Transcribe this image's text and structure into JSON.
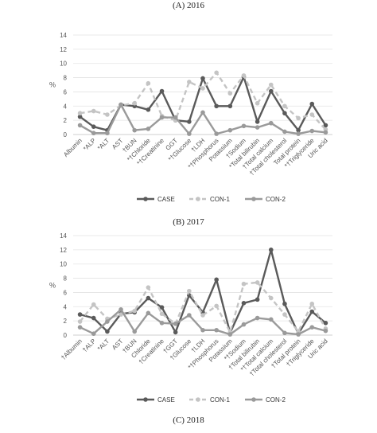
{
  "chart_data": [
    {
      "type": "line",
      "title": "(A) 2016",
      "ylabel": "%",
      "ylim": [
        0,
        14
      ],
      "yticks": [
        0,
        2,
        4,
        6,
        8,
        10,
        12,
        14
      ],
      "grid": true,
      "legend": "bottom",
      "categories": [
        "Albumin",
        "*ALP",
        "*ALT",
        "AST",
        "†BUN",
        "*†Chloride",
        "*†Creatinine",
        "GGT",
        "*†Glucose",
        "†LDH",
        "*†Phosphorus",
        "Potassium",
        "†Sodium",
        "*Total bilirubin",
        "†Total calcium",
        "†Total cholesterol",
        "Total protein",
        "*†Triglyceride",
        "Uric acid"
      ],
      "series": [
        {
          "name": "CASE",
          "color": "#5a5a5a",
          "dash": "solid",
          "values": [
            2.5,
            1.1,
            0.6,
            4.2,
            4.0,
            3.5,
            6.1,
            2.0,
            1.8,
            7.9,
            4.0,
            4.0,
            8.1,
            1.8,
            6.1,
            3.0,
            0.6,
            4.3,
            1.3
          ]
        },
        {
          "name": "CON-1",
          "color": "#c4c4c4",
          "dash": "dashed",
          "values": [
            3.0,
            3.3,
            2.8,
            4.1,
            4.4,
            7.2,
            2.6,
            2.0,
            7.4,
            6.5,
            8.7,
            5.8,
            8.3,
            4.4,
            7.0,
            4.0,
            2.3,
            2.8,
            0.7
          ]
        },
        {
          "name": "CON-2",
          "color": "#9a9a9a",
          "dash": "solid",
          "values": [
            1.3,
            0.2,
            0.2,
            4.2,
            0.6,
            0.8,
            2.4,
            2.4,
            0.1,
            3.1,
            0.1,
            0.6,
            1.2,
            1.0,
            1.6,
            0.4,
            0.1,
            0.5,
            0.3
          ]
        }
      ]
    },
    {
      "type": "line",
      "title": "(B) 2017",
      "ylabel": "%",
      "ylim": [
        0,
        14
      ],
      "yticks": [
        0,
        2,
        4,
        6,
        8,
        10,
        12,
        14
      ],
      "grid": true,
      "legend": "bottom",
      "categories": [
        "†Albumin",
        "†ALP",
        "*ALT",
        "AST",
        "†BUN",
        "Chloride",
        "†Creatinine",
        "†GGT",
        "†Glucose",
        "†LDH",
        "*†Phosphorus",
        "Potassium",
        "*†Sodium",
        "†Total bilirubin",
        "*†Total calcium",
        "†Total cholesterol",
        "†Total protein",
        "†Triglyceride",
        "Uric acid"
      ],
      "series": [
        {
          "name": "CASE",
          "color": "#5a5a5a",
          "dash": "solid",
          "values": [
            2.9,
            2.4,
            0.5,
            3.0,
            3.2,
            5.2,
            3.9,
            0.4,
            5.6,
            3.2,
            7.8,
            0.3,
            4.5,
            5.0,
            12.0,
            4.4,
            0.2,
            3.3,
            1.7
          ]
        },
        {
          "name": "CON-1",
          "color": "#c4c4c4",
          "dash": "dashed",
          "values": [
            1.9,
            4.3,
            2.3,
            2.9,
            3.4,
            6.7,
            3.0,
            1.6,
            6.2,
            2.8,
            4.1,
            0.4,
            7.2,
            7.4,
            5.2,
            2.9,
            0.5,
            4.4,
            0.9
          ]
        },
        {
          "name": "CON-2",
          "color": "#9a9a9a",
          "dash": "solid",
          "values": [
            1.1,
            0.2,
            1.9,
            3.6,
            0.5,
            3.1,
            1.7,
            1.6,
            2.8,
            0.7,
            0.7,
            0.1,
            1.5,
            2.4,
            2.2,
            0.3,
            0.1,
            1.1,
            0.6
          ]
        }
      ]
    }
  ],
  "captions": {
    "c": "(C) 2018"
  }
}
